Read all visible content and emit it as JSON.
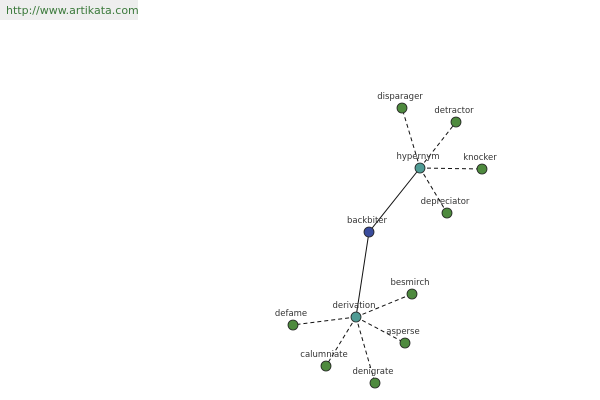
{
  "header": {
    "url": "http://www.artikata.com"
  },
  "nodes": [
    {
      "label": "backbiter"
    },
    {
      "label": "hypernym"
    },
    {
      "label": "derivation"
    },
    {
      "label": "disparager"
    },
    {
      "label": "detractor"
    },
    {
      "label": "knocker"
    },
    {
      "label": "depreciator"
    },
    {
      "label": "besmirch"
    },
    {
      "label": "defame"
    },
    {
      "label": "asperse"
    },
    {
      "label": "calumniate"
    },
    {
      "label": "denigrate"
    }
  ]
}
